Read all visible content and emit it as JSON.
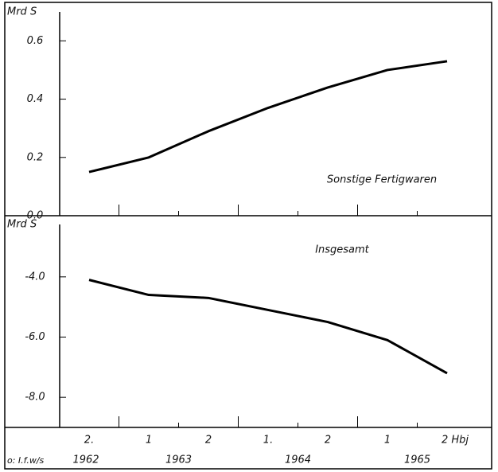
{
  "chart_data": [
    {
      "type": "line",
      "ylabel": "Mrd S",
      "annotation": "Sonstige Fertigwaren",
      "color": "#000000",
      "values": [
        0.15,
        0.2,
        0.29,
        0.37,
        0.44,
        0.5,
        0.53
      ],
      "ylim": [
        0,
        0.62
      ],
      "yticks": [
        {
          "value": 0,
          "label": "0.0"
        },
        0.2,
        0.4,
        0.6
      ]
    },
    {
      "type": "line",
      "ylabel": "Mrd S",
      "annotation": "Insgesamt",
      "color": "#000000",
      "categories": [
        "2.",
        "1",
        "2",
        "1.",
        "2",
        "1",
        "2 Hbj"
      ],
      "years": [
        "1962",
        "1963",
        "1964",
        "1965"
      ],
      "values": [
        -4.1,
        -4.6,
        -4.7,
        -5.1,
        -5.5,
        -6.1,
        -7.2
      ],
      "ylim": [
        -9,
        -3
      ],
      "yticks": [
        {
          "value": -4,
          "label": "-4.0"
        },
        {
          "value": -6,
          "label": "-6.0"
        },
        {
          "value": -8,
          "label": "-8.0"
        }
      ],
      "source": "o: I.f.w/s"
    }
  ]
}
